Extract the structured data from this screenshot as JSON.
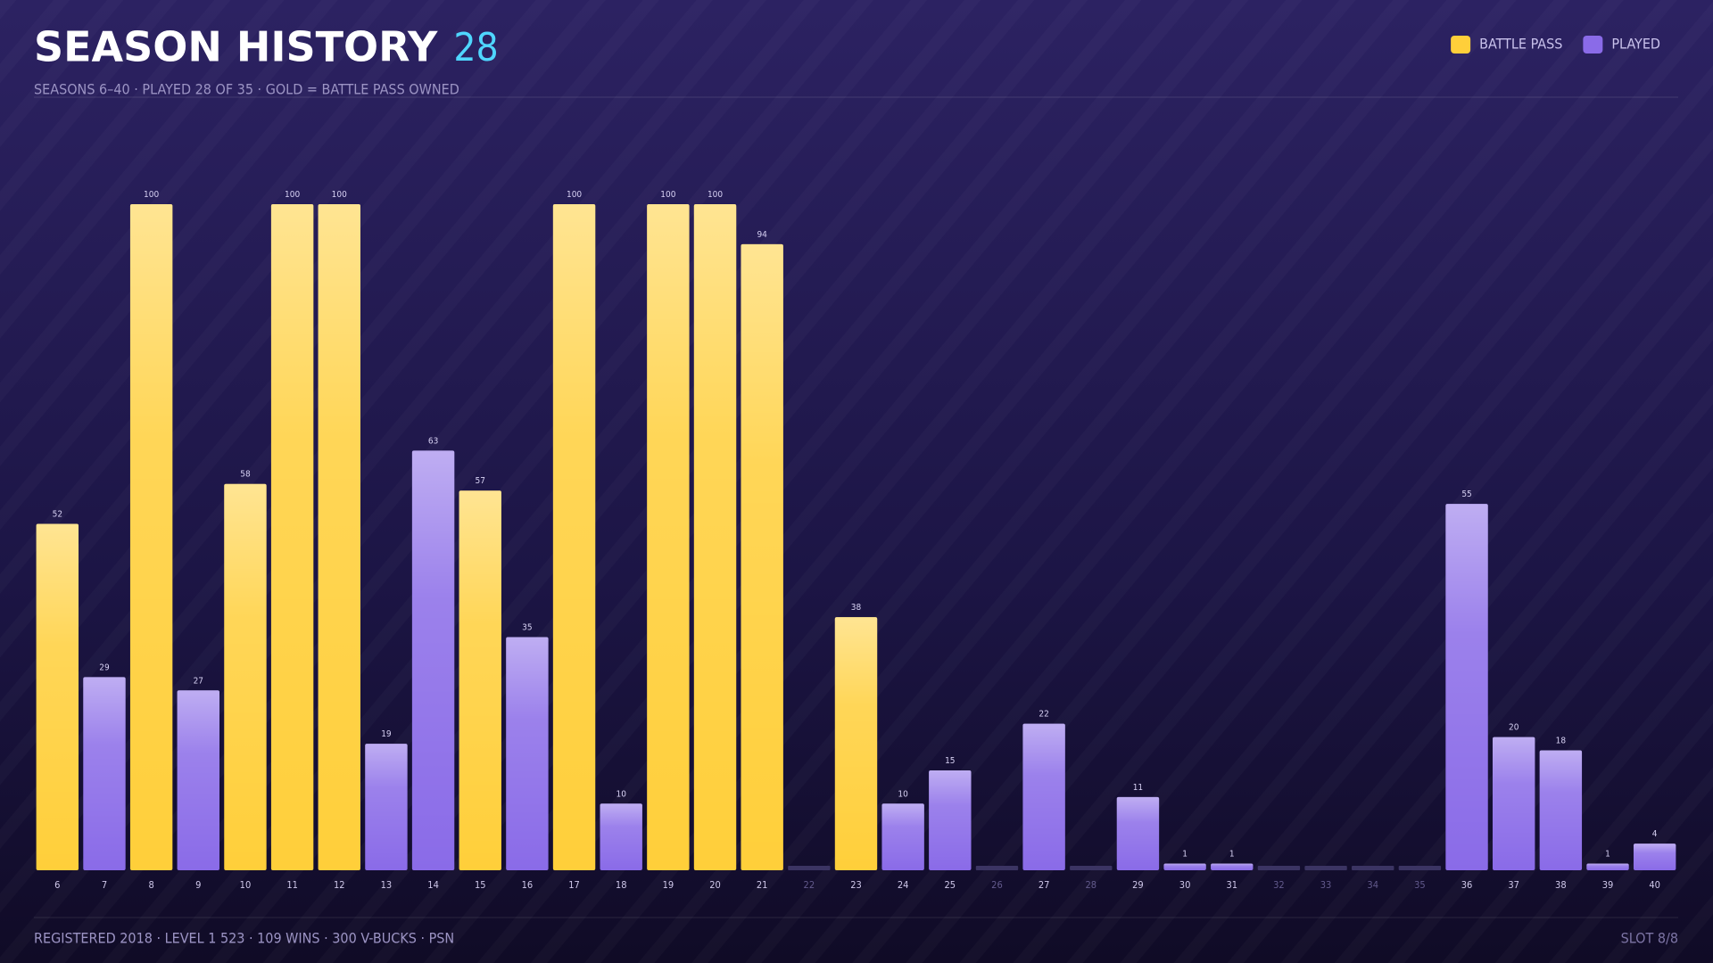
{
  "chart_data": {
    "type": "bar",
    "title": "SEASON HISTORY",
    "title_count": 28,
    "subtitle": "SEASONS 6–40  ·  PLAYED 28 OF 35  ·  GOLD = BATTLE PASS OWNED",
    "footer": "REGISTERED 2018  ·  LEVEL 1 523  ·  109 WINS  ·  300 V-BUCKS  ·  PSN",
    "footer_right": "SLOT 8/8",
    "legend": "top-right",
    "ylim": [
      0,
      100
    ],
    "categories": [
      "6",
      "7",
      "8",
      "9",
      "10",
      "11",
      "12",
      "13",
      "14",
      "15",
      "16",
      "17",
      "18",
      "19",
      "20",
      "21",
      "22",
      "23",
      "24",
      "25",
      "26",
      "27",
      "28",
      "29",
      "30",
      "31",
      "32",
      "33",
      "34",
      "35",
      "36",
      "37",
      "38",
      "39",
      "40"
    ],
    "series": [
      {
        "name": "BATTLE PASS",
        "color": "#ffcf3a",
        "values": [
          52,
          null,
          100,
          null,
          58,
          100,
          100,
          null,
          null,
          57,
          null,
          100,
          null,
          100,
          100,
          94,
          null,
          38,
          null,
          null,
          null,
          null,
          null,
          null,
          null,
          null,
          null,
          null,
          null,
          null,
          null,
          null,
          null,
          null,
          null
        ]
      },
      {
        "name": "PLAYED",
        "color": "#8a6be8",
        "values": [
          null,
          29,
          null,
          27,
          null,
          null,
          null,
          19,
          63,
          null,
          35,
          null,
          10,
          null,
          null,
          null,
          null,
          null,
          10,
          15,
          null,
          22,
          null,
          11,
          1,
          1,
          null,
          null,
          null,
          null,
          55,
          20,
          18,
          1,
          4
        ]
      }
    ]
  }
}
